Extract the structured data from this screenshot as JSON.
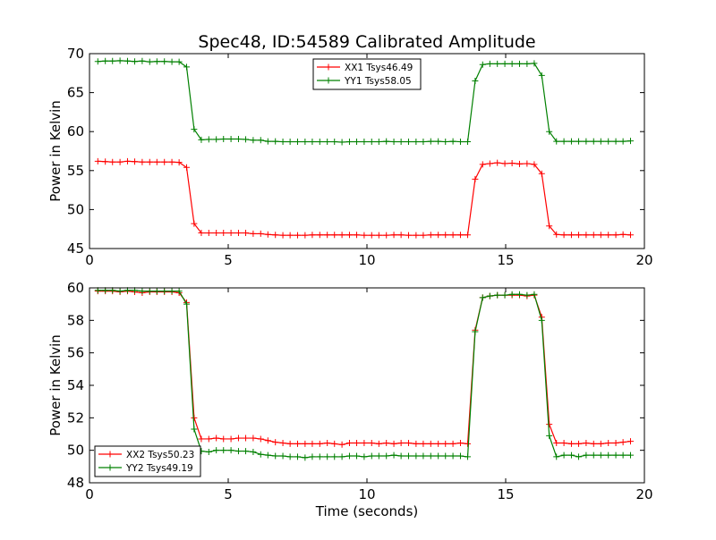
{
  "figure": {
    "title": "Spec48, ID:54589 Calibrated Amplitude",
    "xlabel": "Time (seconds)"
  },
  "chart_data": [
    {
      "type": "line",
      "title": "Spec48, ID:54589 Calibrated Amplitude",
      "xlabel": "",
      "ylabel": "Power in Kelvin",
      "xlim": [
        0,
        20
      ],
      "ylim": [
        45,
        70
      ],
      "xticks": [
        0,
        5,
        10,
        15,
        20
      ],
      "yticks": [
        45,
        50,
        55,
        60,
        65,
        70
      ],
      "grid": false,
      "legend_position": "top-center",
      "x": [
        0.3,
        0.57,
        0.83,
        1.1,
        1.37,
        1.63,
        1.9,
        2.17,
        2.43,
        2.7,
        2.97,
        3.23,
        3.5,
        3.77,
        4.03,
        4.3,
        4.57,
        4.83,
        5.1,
        5.37,
        5.63,
        5.9,
        6.17,
        6.43,
        6.7,
        6.97,
        7.23,
        7.5,
        7.77,
        8.03,
        8.3,
        8.57,
        8.83,
        9.1,
        9.37,
        9.63,
        9.9,
        10.17,
        10.43,
        10.7,
        10.97,
        11.23,
        11.5,
        11.77,
        12.03,
        12.3,
        12.57,
        12.83,
        13.1,
        13.37,
        13.63,
        13.9,
        14.17,
        14.43,
        14.7,
        14.97,
        15.23,
        15.5,
        15.77,
        16.03,
        16.3,
        16.57,
        16.83,
        17.1,
        17.37,
        17.63,
        17.9,
        18.17,
        18.43,
        18.7,
        18.97,
        19.23,
        19.5
      ],
      "series": [
        {
          "name": "XX1 Tsys46.49",
          "color": "#ff0000",
          "values": [
            56.2,
            56.15,
            56.1,
            56.1,
            56.2,
            56.15,
            56.1,
            56.1,
            56.1,
            56.1,
            56.1,
            56.05,
            55.4,
            48.2,
            47.0,
            47.0,
            47.0,
            47.0,
            47.0,
            47.0,
            47.0,
            46.9,
            46.9,
            46.8,
            46.75,
            46.7,
            46.7,
            46.7,
            46.7,
            46.75,
            46.75,
            46.75,
            46.75,
            46.75,
            46.75,
            46.75,
            46.7,
            46.7,
            46.7,
            46.7,
            46.75,
            46.75,
            46.7,
            46.7,
            46.7,
            46.75,
            46.75,
            46.75,
            46.75,
            46.75,
            46.75,
            53.9,
            55.8,
            55.9,
            56.0,
            55.9,
            55.95,
            55.85,
            55.9,
            55.8,
            54.6,
            47.9,
            46.8,
            46.75,
            46.75,
            46.75,
            46.75,
            46.75,
            46.75,
            46.75,
            46.75,
            46.8,
            46.75
          ]
        },
        {
          "name": "YY1 Tsys58.05",
          "color": "#008000",
          "values": [
            69.0,
            69.05,
            69.05,
            69.1,
            69.05,
            69.0,
            69.05,
            68.95,
            69.0,
            69.0,
            68.95,
            68.95,
            68.3,
            60.3,
            58.95,
            59.0,
            59.0,
            59.05,
            59.05,
            59.05,
            59.0,
            58.9,
            58.9,
            58.75,
            58.75,
            58.7,
            58.7,
            58.7,
            58.7,
            58.7,
            58.7,
            58.7,
            58.7,
            58.65,
            58.7,
            58.7,
            58.7,
            58.7,
            58.7,
            58.75,
            58.7,
            58.7,
            58.7,
            58.7,
            58.7,
            58.75,
            58.75,
            58.7,
            58.75,
            58.7,
            58.7,
            66.5,
            68.6,
            68.7,
            68.7,
            68.7,
            68.7,
            68.7,
            68.7,
            68.75,
            67.2,
            60.0,
            58.75,
            58.75,
            58.75,
            58.75,
            58.75,
            58.75,
            58.75,
            58.75,
            58.75,
            58.75,
            58.8
          ]
        }
      ]
    },
    {
      "type": "line",
      "title": "",
      "xlabel": "Time (seconds)",
      "ylabel": "Power in Kelvin",
      "xlim": [
        0,
        20
      ],
      "ylim": [
        48,
        60
      ],
      "xticks": [
        0,
        5,
        10,
        15,
        20
      ],
      "yticks": [
        48,
        50,
        52,
        54,
        56,
        58,
        60
      ],
      "grid": false,
      "legend_position": "lower-left",
      "x": [
        0.3,
        0.57,
        0.83,
        1.1,
        1.37,
        1.63,
        1.9,
        2.17,
        2.43,
        2.7,
        2.97,
        3.23,
        3.5,
        3.77,
        4.03,
        4.3,
        4.57,
        4.83,
        5.1,
        5.37,
        5.63,
        5.9,
        6.17,
        6.43,
        6.7,
        6.97,
        7.23,
        7.5,
        7.77,
        8.03,
        8.3,
        8.57,
        8.83,
        9.1,
        9.37,
        9.63,
        9.9,
        10.17,
        10.43,
        10.7,
        10.97,
        11.23,
        11.5,
        11.77,
        12.03,
        12.3,
        12.57,
        12.83,
        13.1,
        13.37,
        13.63,
        13.9,
        14.17,
        14.43,
        14.7,
        14.97,
        15.23,
        15.5,
        15.77,
        16.03,
        16.3,
        16.57,
        16.83,
        17.1,
        17.37,
        17.63,
        17.9,
        18.17,
        18.43,
        18.7,
        18.97,
        19.23,
        19.5
      ],
      "series": [
        {
          "name": "XX2 Tsys50.23",
          "color": "#ff0000",
          "values": [
            59.8,
            59.8,
            59.8,
            59.75,
            59.8,
            59.75,
            59.7,
            59.75,
            59.75,
            59.75,
            59.75,
            59.7,
            59.1,
            52.0,
            50.7,
            50.7,
            50.75,
            50.7,
            50.7,
            50.75,
            50.75,
            50.75,
            50.7,
            50.6,
            50.5,
            50.45,
            50.4,
            50.4,
            50.4,
            50.4,
            50.4,
            50.45,
            50.4,
            50.35,
            50.45,
            50.45,
            50.45,
            50.45,
            50.4,
            50.45,
            50.4,
            50.45,
            50.45,
            50.4,
            50.4,
            50.4,
            50.4,
            50.4,
            50.4,
            50.45,
            50.4,
            57.4,
            59.4,
            59.5,
            59.55,
            59.55,
            59.55,
            59.55,
            59.5,
            59.55,
            58.2,
            51.6,
            50.45,
            50.45,
            50.4,
            50.4,
            50.45,
            50.4,
            50.4,
            50.45,
            50.45,
            50.5,
            50.55
          ]
        },
        {
          "name": "YY2 Tsys49.19",
          "color": "#008000",
          "values": [
            59.85,
            59.85,
            59.85,
            59.8,
            59.85,
            59.85,
            59.8,
            59.8,
            59.8,
            59.8,
            59.8,
            59.8,
            59.0,
            51.3,
            49.95,
            49.9,
            50.0,
            50.0,
            50.0,
            49.95,
            49.95,
            49.9,
            49.75,
            49.7,
            49.65,
            49.65,
            49.6,
            49.6,
            49.55,
            49.6,
            49.6,
            49.6,
            49.6,
            49.6,
            49.65,
            49.65,
            49.6,
            49.65,
            49.65,
            49.65,
            49.7,
            49.65,
            49.65,
            49.65,
            49.65,
            49.65,
            49.65,
            49.65,
            49.65,
            49.65,
            49.6,
            57.3,
            59.4,
            59.5,
            59.55,
            59.55,
            59.6,
            59.6,
            59.55,
            59.6,
            58.0,
            50.9,
            49.6,
            49.7,
            49.7,
            49.6,
            49.7,
            49.7,
            49.7,
            49.7,
            49.7,
            49.7,
            49.7
          ]
        }
      ]
    }
  ]
}
